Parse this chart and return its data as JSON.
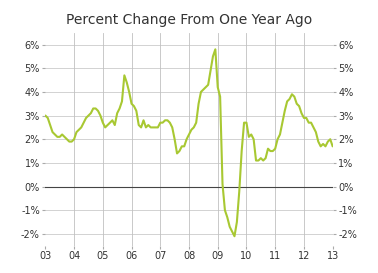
{
  "title": "Percent Change From One Year Ago",
  "line_color": "#a8c832",
  "line_width": 1.5,
  "background_color": "#ffffff",
  "grid_color": "#c0c0c0",
  "zero_line_color": "#444444",
  "ylim": [
    -2.5,
    6.5
  ],
  "yticks": [
    -2,
    -1,
    0,
    1,
    2,
    3,
    4,
    5,
    6
  ],
  "yticklabels": [
    "-2%",
    "-1%",
    "0%",
    "1%",
    "2%",
    "3%",
    "4%",
    "5%",
    "6%"
  ],
  "xtick_labels": [
    "03",
    "04",
    "05",
    "06",
    "07",
    "08",
    "09",
    "10",
    "11",
    "12",
    "13"
  ],
  "title_fontsize": 10,
  "tick_fontsize": 7,
  "data": {
    "x": [
      0,
      1,
      2,
      3,
      4,
      5,
      6,
      7,
      8,
      9,
      10,
      11,
      12,
      13,
      14,
      15,
      16,
      17,
      18,
      19,
      20,
      21,
      22,
      23,
      24,
      25,
      26,
      27,
      28,
      29,
      30,
      31,
      32,
      33,
      34,
      35,
      36,
      37,
      38,
      39,
      40,
      41,
      42,
      43,
      44,
      45,
      46,
      47,
      48,
      49,
      50,
      51,
      52,
      53,
      54,
      55,
      56,
      57,
      58,
      59,
      60,
      61,
      62,
      63,
      64,
      65,
      66,
      67,
      68,
      69,
      70,
      71,
      72,
      73,
      74,
      75,
      76,
      77,
      78,
      79,
      80,
      81,
      82,
      83,
      84,
      85,
      86,
      87,
      88,
      89,
      90,
      91,
      92,
      93,
      94,
      95,
      96,
      97,
      98,
      99,
      100,
      101,
      102,
      103,
      104,
      105,
      106,
      107,
      108,
      109,
      110,
      111,
      112,
      113,
      114,
      115,
      116,
      117,
      118,
      119,
      120
    ],
    "y": [
      3.0,
      2.9,
      2.6,
      2.3,
      2.2,
      2.1,
      2.1,
      2.2,
      2.1,
      2.0,
      1.9,
      1.9,
      2.0,
      2.3,
      2.4,
      2.5,
      2.7,
      2.9,
      3.0,
      3.1,
      3.3,
      3.3,
      3.2,
      3.0,
      2.7,
      2.5,
      2.6,
      2.7,
      2.8,
      2.6,
      3.1,
      3.3,
      3.6,
      4.7,
      4.4,
      4.0,
      3.5,
      3.4,
      3.2,
      2.6,
      2.5,
      2.8,
      2.5,
      2.6,
      2.5,
      2.5,
      2.5,
      2.5,
      2.7,
      2.7,
      2.8,
      2.8,
      2.7,
      2.5,
      2.0,
      1.4,
      1.5,
      1.7,
      1.7,
      2.0,
      2.2,
      2.4,
      2.5,
      2.7,
      3.5,
      4.0,
      4.1,
      4.2,
      4.3,
      4.9,
      5.5,
      5.8,
      4.2,
      3.8,
      0.1,
      -1.0,
      -1.3,
      -1.7,
      -1.9,
      -2.1,
      -1.5,
      -0.2,
      1.5,
      2.7,
      2.7,
      2.1,
      2.2,
      2.0,
      1.1,
      1.1,
      1.2,
      1.1,
      1.2,
      1.6,
      1.5,
      1.5,
      1.6,
      2.0,
      2.2,
      2.7,
      3.2,
      3.6,
      3.7,
      3.9,
      3.8,
      3.5,
      3.4,
      3.1,
      2.9,
      2.9,
      2.7,
      2.7,
      2.5,
      2.3,
      1.9,
      1.7,
      1.8,
      1.7,
      1.9,
      2.0,
      1.7
    ]
  }
}
